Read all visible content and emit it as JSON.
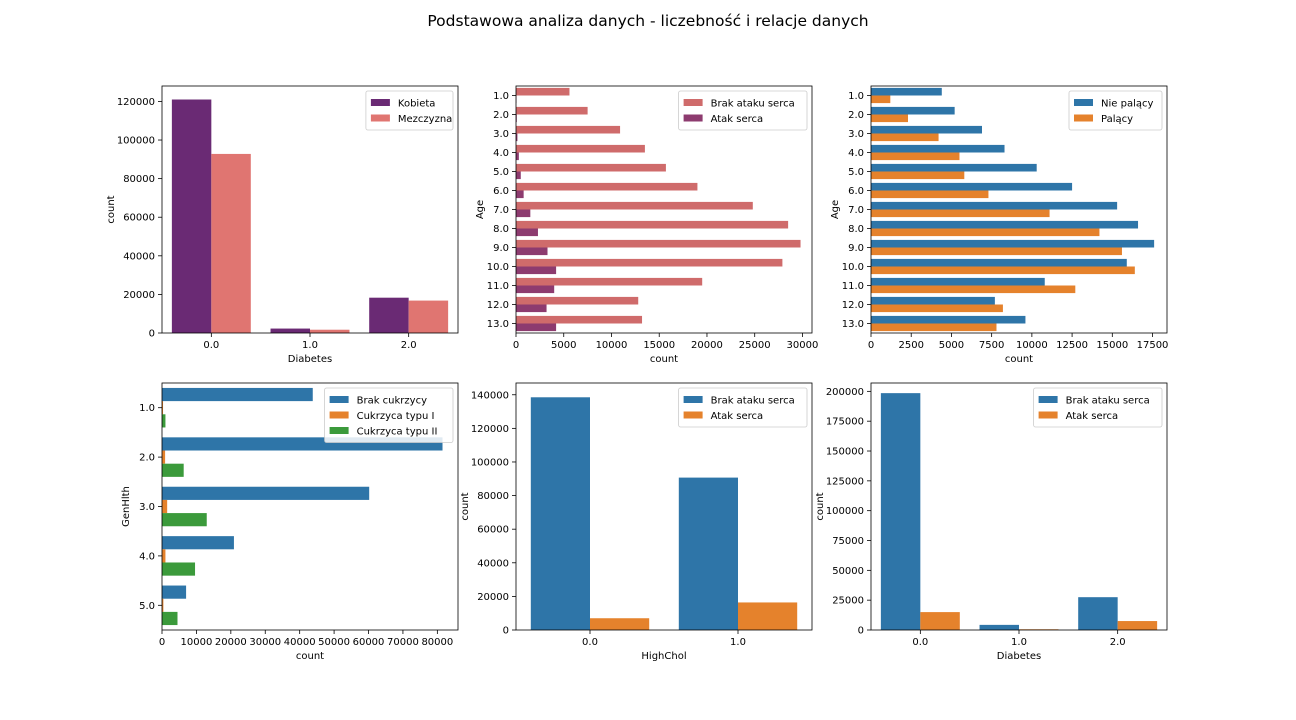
{
  "title": "Podstawowa analiza danych - liczebność i relacje danych",
  "chart_data": [
    {
      "type": "bar",
      "orientation": "vertical",
      "xlabel": "Diabetes",
      "ylabel": "count",
      "categories": [
        "0.0",
        "1.0",
        "2.0"
      ],
      "ylim": [
        0,
        128000
      ],
      "ticks": [
        0,
        20000,
        40000,
        60000,
        80000,
        100000,
        120000
      ],
      "legend_position": "upper-right",
      "series": [
        {
          "name": "Kobieta",
          "color": "#6a2a74",
          "values": [
            121000,
            2300,
            18300
          ]
        },
        {
          "name": "Mezczyzna",
          "color": "#e07571",
          "values": [
            92800,
            1700,
            16800
          ]
        }
      ]
    },
    {
      "type": "bar",
      "orientation": "horizontal",
      "xlabel": "count",
      "ylabel": "Age",
      "categories": [
        "1.0",
        "2.0",
        "3.0",
        "4.0",
        "5.0",
        "6.0",
        "7.0",
        "8.0",
        "9.0",
        "10.0",
        "11.0",
        "12.0",
        "13.0"
      ],
      "xlim": [
        0,
        31000
      ],
      "ticks": [
        0,
        5000,
        10000,
        15000,
        20000,
        25000,
        30000
      ],
      "legend_position": "upper-right",
      "series": [
        {
          "name": "Brak ataku serca",
          "color": "#cf6b6b",
          "values": [
            5600,
            7500,
            10900,
            13500,
            15700,
            19000,
            24800,
            28500,
            29800,
            27900,
            19500,
            12800,
            13200
          ]
        },
        {
          "name": "Atak serca",
          "color": "#8d3b6f",
          "values": [
            40,
            80,
            150,
            300,
            500,
            800,
            1500,
            2300,
            3300,
            4200,
            4000,
            3200,
            4200
          ]
        }
      ]
    },
    {
      "type": "bar",
      "orientation": "horizontal",
      "xlabel": "count",
      "ylabel": "Age",
      "categories": [
        "1.0",
        "2.0",
        "3.0",
        "4.0",
        "5.0",
        "6.0",
        "7.0",
        "8.0",
        "9.0",
        "10.0",
        "11.0",
        "12.0",
        "13.0"
      ],
      "xlim": [
        0,
        18400
      ],
      "ticks": [
        0,
        2500,
        5000,
        7500,
        10000,
        12500,
        15000,
        17500
      ],
      "legend_position": "upper-right",
      "series": [
        {
          "name": "Nie palący",
          "color": "#2e75a8",
          "values": [
            4400,
            5200,
            6900,
            8300,
            10300,
            12500,
            15300,
            16600,
            17600,
            15900,
            10800,
            7700,
            9600
          ]
        },
        {
          "name": "Palący",
          "color": "#e5822c",
          "values": [
            1200,
            2300,
            4200,
            5500,
            5800,
            7300,
            11100,
            14200,
            15600,
            16400,
            12700,
            8200,
            7800
          ]
        }
      ]
    },
    {
      "type": "bar",
      "orientation": "horizontal",
      "xlabel": "count",
      "ylabel": "GenHlth",
      "categories": [
        "1.0",
        "2.0",
        "3.0",
        "4.0",
        "5.0"
      ],
      "xlim": [
        0,
        86000
      ],
      "ticks": [
        0,
        10000,
        20000,
        30000,
        40000,
        50000,
        60000,
        70000,
        80000
      ],
      "legend_position": "upper-right",
      "series": [
        {
          "name": "Brak cukrzycy",
          "color": "#2e75a8",
          "values": [
            43800,
            81500,
            60200,
            20900,
            7000
          ]
        },
        {
          "name": "Cukrzyca typu I",
          "color": "#e5822c",
          "values": [
            300,
            900,
            1500,
            1000,
            400
          ]
        },
        {
          "name": "Cukrzyca typu II",
          "color": "#3b9a3b",
          "values": [
            1000,
            6300,
            13000,
            9600,
            4500
          ]
        }
      ]
    },
    {
      "type": "bar",
      "orientation": "vertical",
      "xlabel": "HighChol",
      "ylabel": "count",
      "categories": [
        "0.0",
        "1.0"
      ],
      "ylim": [
        0,
        147000
      ],
      "ticks": [
        0,
        20000,
        40000,
        60000,
        80000,
        100000,
        120000,
        140000
      ],
      "legend_position": "upper-right",
      "series": [
        {
          "name": "Brak ataku serca",
          "color": "#2e75a8",
          "values": [
            138500,
            90700
          ]
        },
        {
          "name": "Atak serca",
          "color": "#e5822c",
          "values": [
            7000,
            16400
          ]
        }
      ]
    },
    {
      "type": "bar",
      "orientation": "vertical",
      "xlabel": "Diabetes",
      "ylabel": "count",
      "categories": [
        "0.0",
        "1.0",
        "2.0"
      ],
      "ylim": [
        0,
        207000
      ],
      "ticks": [
        0,
        25000,
        50000,
        75000,
        100000,
        125000,
        150000,
        175000,
        200000
      ],
      "legend_position": "upper-right",
      "series": [
        {
          "name": "Brak ataku serca",
          "color": "#2e75a8",
          "values": [
            198500,
            4300,
            27500
          ]
        },
        {
          "name": "Atak serca",
          "color": "#e5822c",
          "values": [
            15000,
            600,
            7500
          ]
        }
      ]
    }
  ]
}
